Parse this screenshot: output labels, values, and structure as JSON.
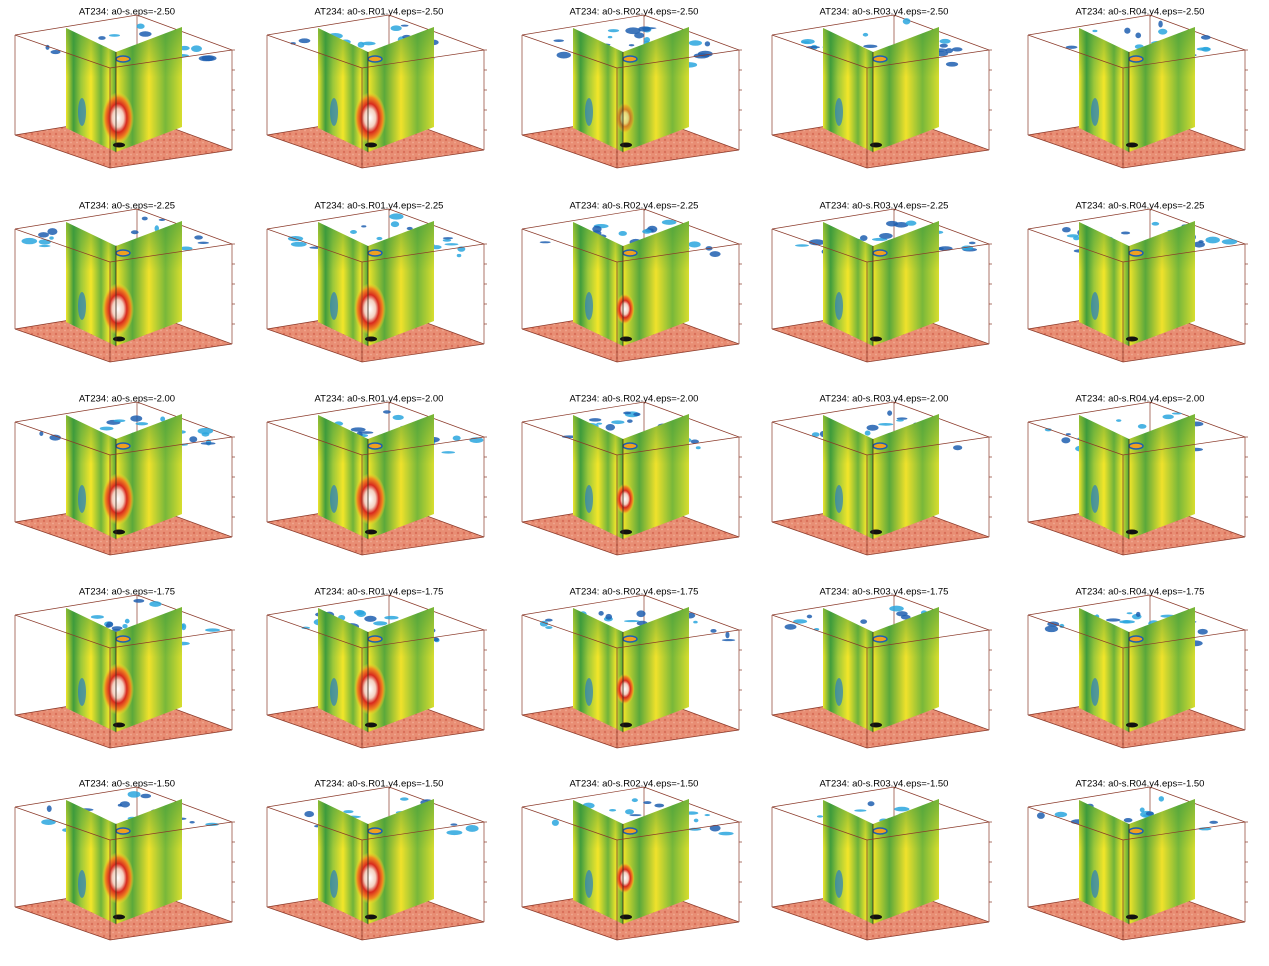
{
  "panels": [
    {
      "title": "AT234: a0-s.eps=-2.50"
    },
    {
      "title": "AT234: a0-s.R01.y4.eps=-2.50"
    },
    {
      "title": "AT234: a0-s.R02.y4.eps=-2.50"
    },
    {
      "title": "AT234: a0-s.R03.y4.eps=-2.50"
    },
    {
      "title": "AT234: a0-s.R04.y4.eps=-2.50"
    },
    {
      "title": "AT234: a0-s.eps=-2.25"
    },
    {
      "title": "AT234: a0-s.R01.y4.eps=-2.25"
    },
    {
      "title": "AT234: a0-s.R02.y4.eps=-2.25"
    },
    {
      "title": "AT234: a0-s.R03.y4.eps=-2.25"
    },
    {
      "title": "AT234: a0-s.R04.y4.eps=-2.25"
    },
    {
      "title": "AT234: a0-s.eps=-2.00"
    },
    {
      "title": "AT234: a0-s.R01.y4.eps=-2.00"
    },
    {
      "title": "AT234: a0-s.R02.y4.eps=-2.00"
    },
    {
      "title": "AT234: a0-s.R03.y4.eps=-2.00"
    },
    {
      "title": "AT234: a0-s.R04.y4.eps=-2.00"
    },
    {
      "title": "AT234: a0-s.eps=-1.75"
    },
    {
      "title": "AT234: a0-s.R01.y4.eps=-1.75"
    },
    {
      "title": "AT234: a0-s.R02.y4.eps=-1.75"
    },
    {
      "title": "AT234: a0-s.R03.y4.eps=-1.75"
    },
    {
      "title": "AT234: a0-s.R04.y4.eps=-1.75"
    },
    {
      "title": "AT234: a0-s.eps=-1.50"
    },
    {
      "title": "AT234: a0-s.R01.y4.eps=-1.50"
    },
    {
      "title": "AT234: a0-s.R02.y4.eps=-1.50"
    },
    {
      "title": "AT234: a0-s.R03.y4.eps=-1.50"
    },
    {
      "title": "AT234: a0-s.R04.y4.eps=-1.50"
    }
  ]
}
